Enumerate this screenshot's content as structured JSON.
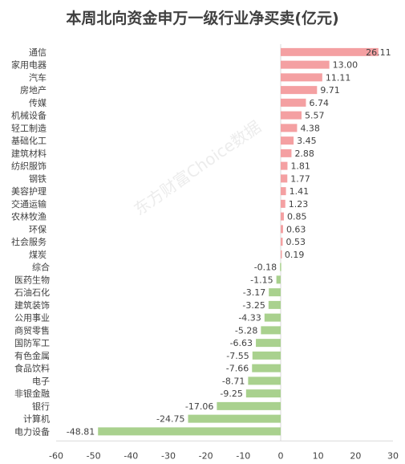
{
  "chart_data": {
    "type": "bar",
    "orientation": "horizontal",
    "title": "本周北向资金申万一级行业净买卖(亿元)",
    "categories": [
      "通信",
      "家用电器",
      "汽车",
      "房地产",
      "传媒",
      "机械设备",
      "轻工制造",
      "基础化工",
      "建筑材料",
      "纺织服饰",
      "钢铁",
      "美容护理",
      "交通运输",
      "农林牧渔",
      "环保",
      "社会服务",
      "煤炭",
      "综合",
      "医药生物",
      "石油石化",
      "建筑装饰",
      "公用事业",
      "商贸零售",
      "国防军工",
      "有色金属",
      "食品饮料",
      "电子",
      "非银金融",
      "银行",
      "计算机",
      "电力设备"
    ],
    "values": [
      26.11,
      13.0,
      11.11,
      9.71,
      6.74,
      5.57,
      4.38,
      3.45,
      2.88,
      1.81,
      1.77,
      1.41,
      1.23,
      0.85,
      0.63,
      0.53,
      0.19,
      -0.18,
      -1.15,
      -3.17,
      -3.25,
      -4.33,
      -5.28,
      -6.63,
      -7.55,
      -7.66,
      -8.71,
      -9.25,
      -17.06,
      -24.75,
      -48.81
    ],
    "value_labels": [
      "26.11",
      "13.00",
      "11.11",
      "9.71",
      "6.74",
      "5.57",
      "4.38",
      "3.45",
      "2.88",
      "1.81",
      "1.77",
      "1.41",
      "1.23",
      "0.85",
      "0.63",
      "0.53",
      "0.19",
      "-0.18",
      "-1.15",
      "-3.17",
      "-3.25",
      "-4.33",
      "-5.28",
      "-6.63",
      "-7.55",
      "-7.66",
      "-8.71",
      "-9.25",
      "-17.06",
      "-24.75",
      "-48.81"
    ],
    "xlim": [
      -60,
      30
    ],
    "xticks": [
      "-60",
      "-50",
      "-40",
      "-30",
      "-20",
      "-10",
      "0",
      "10",
      "20",
      "30"
    ],
    "xlabel": "",
    "ylabel": "",
    "grid": false,
    "colors": {
      "positive": "#f4a0a2",
      "negative": "#a9d18e",
      "axis": "#d9d9d9",
      "text": "#404040"
    },
    "watermark": "东方财富Choice数据"
  }
}
